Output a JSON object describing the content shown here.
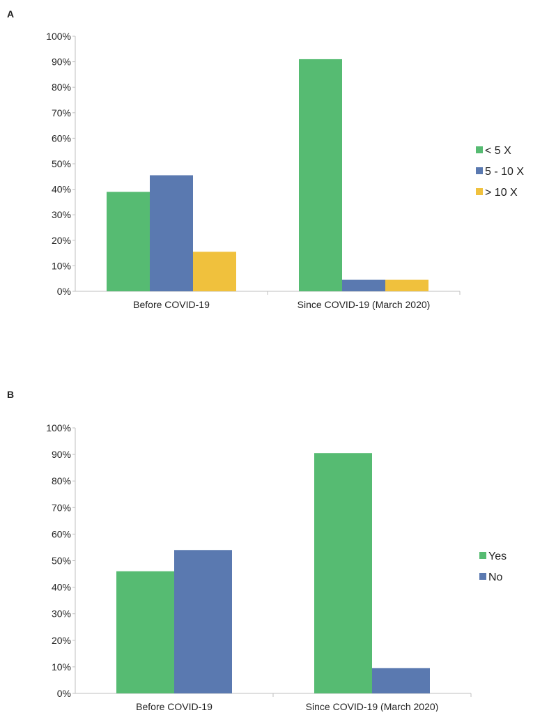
{
  "colors": {
    "green": "#56bb72",
    "blue": "#5a79b0",
    "yellow": "#f0c13d",
    "axis": "#bfbfbf"
  },
  "chart_data": [
    {
      "panel_label": "A",
      "type": "bar",
      "categories": [
        "Before COVID-19",
        "Since COVID-19 (March 2020)"
      ],
      "series": [
        {
          "name": "< 5 X",
          "color": "green",
          "values": [
            39,
            91
          ]
        },
        {
          "name": "5 - 10 X",
          "color": "blue",
          "values": [
            45.5,
            4.5
          ]
        },
        {
          "name": "> 10 X",
          "color": "yellow",
          "values": [
            15.5,
            4.5
          ]
        }
      ],
      "yticks": [
        "0%",
        "10%",
        "20%",
        "30%",
        "40%",
        "50%",
        "60%",
        "70%",
        "80%",
        "90%",
        "100%"
      ],
      "ylim": [
        0,
        100
      ],
      "title": "",
      "xlabel": "",
      "ylabel": "",
      "legend_position": "right"
    },
    {
      "panel_label": "B",
      "type": "bar",
      "categories": [
        "Before COVID-19",
        "Since COVID-19 (March 2020)"
      ],
      "series": [
        {
          "name": "Yes",
          "color": "green",
          "values": [
            46,
            90.5
          ]
        },
        {
          "name": "No",
          "color": "blue",
          "values": [
            54,
            9.5
          ]
        }
      ],
      "yticks": [
        "0%",
        "10%",
        "20%",
        "30%",
        "40%",
        "50%",
        "60%",
        "70%",
        "80%",
        "90%",
        "100%"
      ],
      "ylim": [
        0,
        100
      ],
      "title": "",
      "xlabel": "",
      "ylabel": "",
      "legend_position": "right"
    }
  ]
}
